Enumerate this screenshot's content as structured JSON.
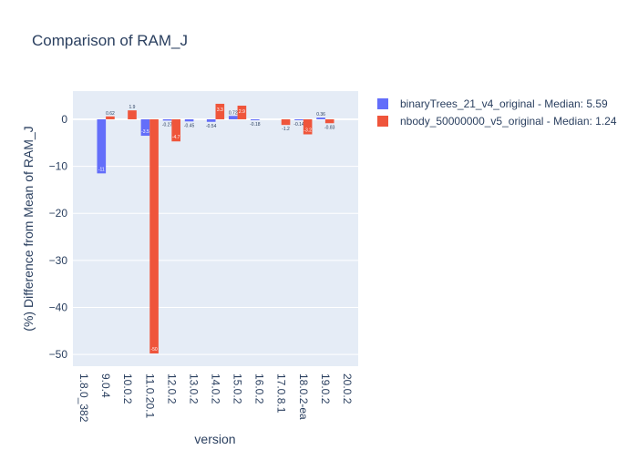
{
  "chart_data": {
    "type": "bar",
    "title": "Comparison of RAM_J",
    "xlabel": "version",
    "ylabel": "(%) Difference from Mean of RAM_J",
    "categories": [
      "1.8.0_382",
      "9.0.4",
      "10.0.2",
      "11.0.20.1",
      "12.0.2",
      "13.0.2",
      "14.0.2",
      "15.0.2",
      "16.0.2",
      "17.0.8.1",
      "18.0.2-ea",
      "19.0.2",
      "20.0.2"
    ],
    "ylim": [
      -52.5,
      6.0
    ],
    "yticks": [
      0,
      -10,
      -20,
      -30,
      -40,
      -50
    ],
    "ytick_labels": [
      "0",
      "−10",
      "−20",
      "−30",
      "−40",
      "−50"
    ],
    "grid": true,
    "legend_position": "right",
    "series": [
      {
        "name": "binaryTrees_21_v4_original - Median: 5.59",
        "color": "#636efa",
        "values": [
          null,
          -11.5,
          null,
          -3.5,
          -0.27,
          -0.45,
          -0.54,
          0.72,
          -0.18,
          null,
          -0.14,
          0.36,
          null
        ],
        "labels": [
          "",
          "-11",
          "",
          "-3.5",
          "-0.27",
          "-0.45",
          "-0.54",
          "0.72",
          "-0.18",
          "",
          "-0.14",
          "0.36",
          ""
        ]
      },
      {
        "name": "nbody_50000000_v5_original - Median: 1.24",
        "color": "#ef553b",
        "values": [
          null,
          0.62,
          1.9,
          -49.8,
          -4.7,
          null,
          3.3,
          2.9,
          null,
          -1.2,
          -3.2,
          -0.83,
          null
        ],
        "labels": [
          "",
          "0.62",
          "1.9",
          "-50",
          "-4.7",
          "",
          "3.3",
          "2.9",
          "",
          "-1.2",
          "-3.2",
          "-0.83",
          ""
        ]
      }
    ]
  }
}
